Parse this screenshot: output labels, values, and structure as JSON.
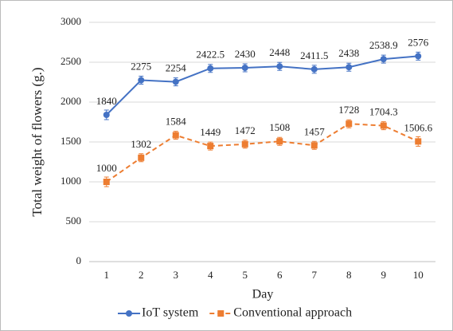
{
  "chart_data": {
    "type": "line",
    "x_label": "Day",
    "y_label": "Total weight of  flowers (g.)",
    "categories": [
      "1",
      "2",
      "3",
      "4",
      "5",
      "6",
      "7",
      "8",
      "9",
      "10"
    ],
    "series": [
      {
        "name": "IoT system",
        "color": "#4472c4",
        "marker": "circle",
        "dashed": false,
        "values": [
          1840,
          2275,
          2254,
          2422.5,
          2430,
          2448,
          2411.5,
          2438,
          2538.9,
          2576
        ],
        "errors": [
          60,
          50,
          50,
          50,
          50,
          50,
          50,
          50,
          50,
          50
        ]
      },
      {
        "name": "Conventional approach",
        "color": "#ed7d31",
        "marker": "square",
        "dashed": true,
        "values": [
          1000,
          1302,
          1584,
          1449,
          1472,
          1508,
          1457,
          1728,
          1704.3,
          1506.6
        ],
        "errors": [
          60,
          50,
          50,
          50,
          50,
          50,
          50,
          50,
          50,
          60
        ]
      }
    ],
    "ylim": [
      0,
      3000
    ],
    "yticks": [
      0,
      500,
      1000,
      1500,
      2000,
      2500,
      3000
    ],
    "grid": true
  }
}
